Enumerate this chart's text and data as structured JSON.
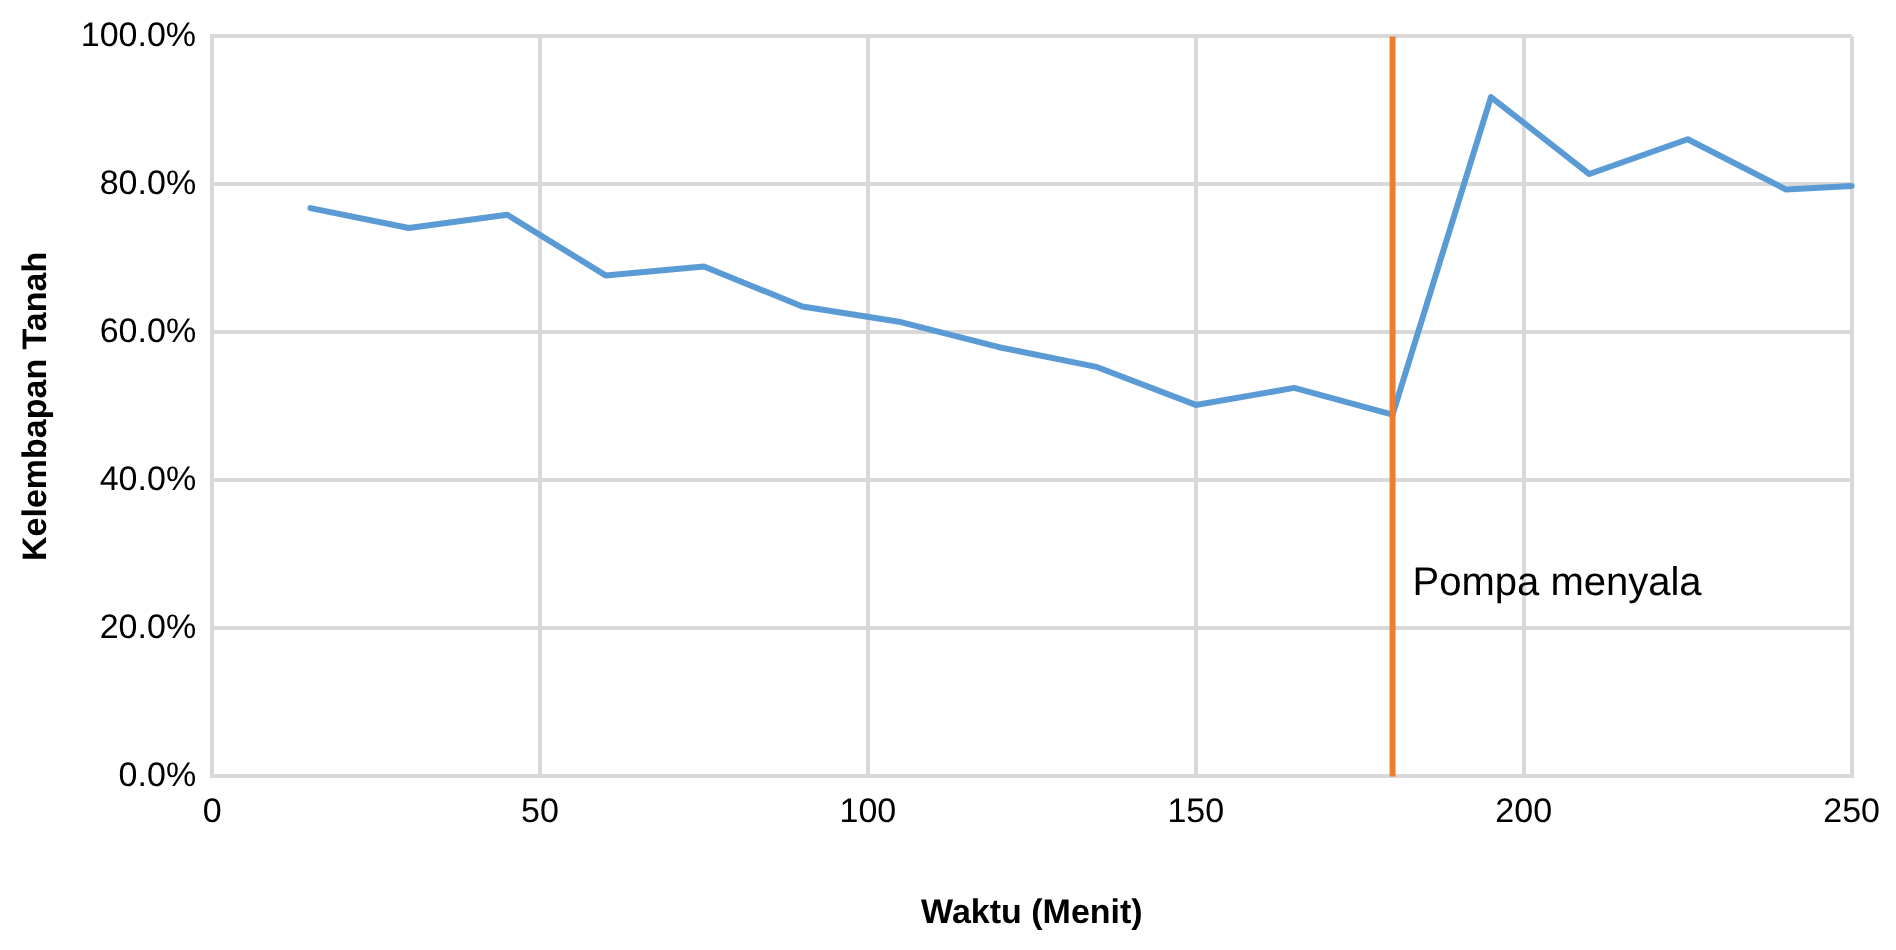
{
  "chart_data": {
    "type": "line",
    "xlabel": "Waktu (Menit)",
    "ylabel": "Kelembapan Tanah",
    "x": [
      15,
      30,
      45,
      60,
      75,
      90,
      105,
      120,
      135,
      150,
      165,
      180,
      195,
      210,
      225,
      240,
      250
    ],
    "series": [
      {
        "color": "#5b9bd5",
        "values": [
          76.8,
          74.1,
          75.9,
          67.7,
          68.9,
          63.5,
          61.4,
          58.0,
          55.3,
          50.2,
          52.5,
          48.9,
          91.8,
          81.4,
          86.1,
          79.3,
          79.8
        ]
      }
    ],
    "xlim": [
      0,
      250
    ],
    "xticks": [
      0,
      50,
      100,
      150,
      200,
      250
    ],
    "ylim": [
      0,
      100
    ],
    "yticks": [
      {
        "value": 0,
        "label": "0.0%"
      },
      {
        "value": 20,
        "label": "20.0%"
      },
      {
        "value": 40,
        "label": "40.0%"
      },
      {
        "value": 60,
        "label": "60.0%"
      },
      {
        "value": 80,
        "label": "80.0%"
      },
      {
        "value": 100,
        "label": "100.0%"
      }
    ],
    "ref_lines": [
      {
        "axis": "x",
        "value": 180,
        "label": "Pompa menyala",
        "color": "#ed7d31"
      }
    ],
    "grid": true,
    "legend": false,
    "marker": "none",
    "line_style": "solid"
  }
}
